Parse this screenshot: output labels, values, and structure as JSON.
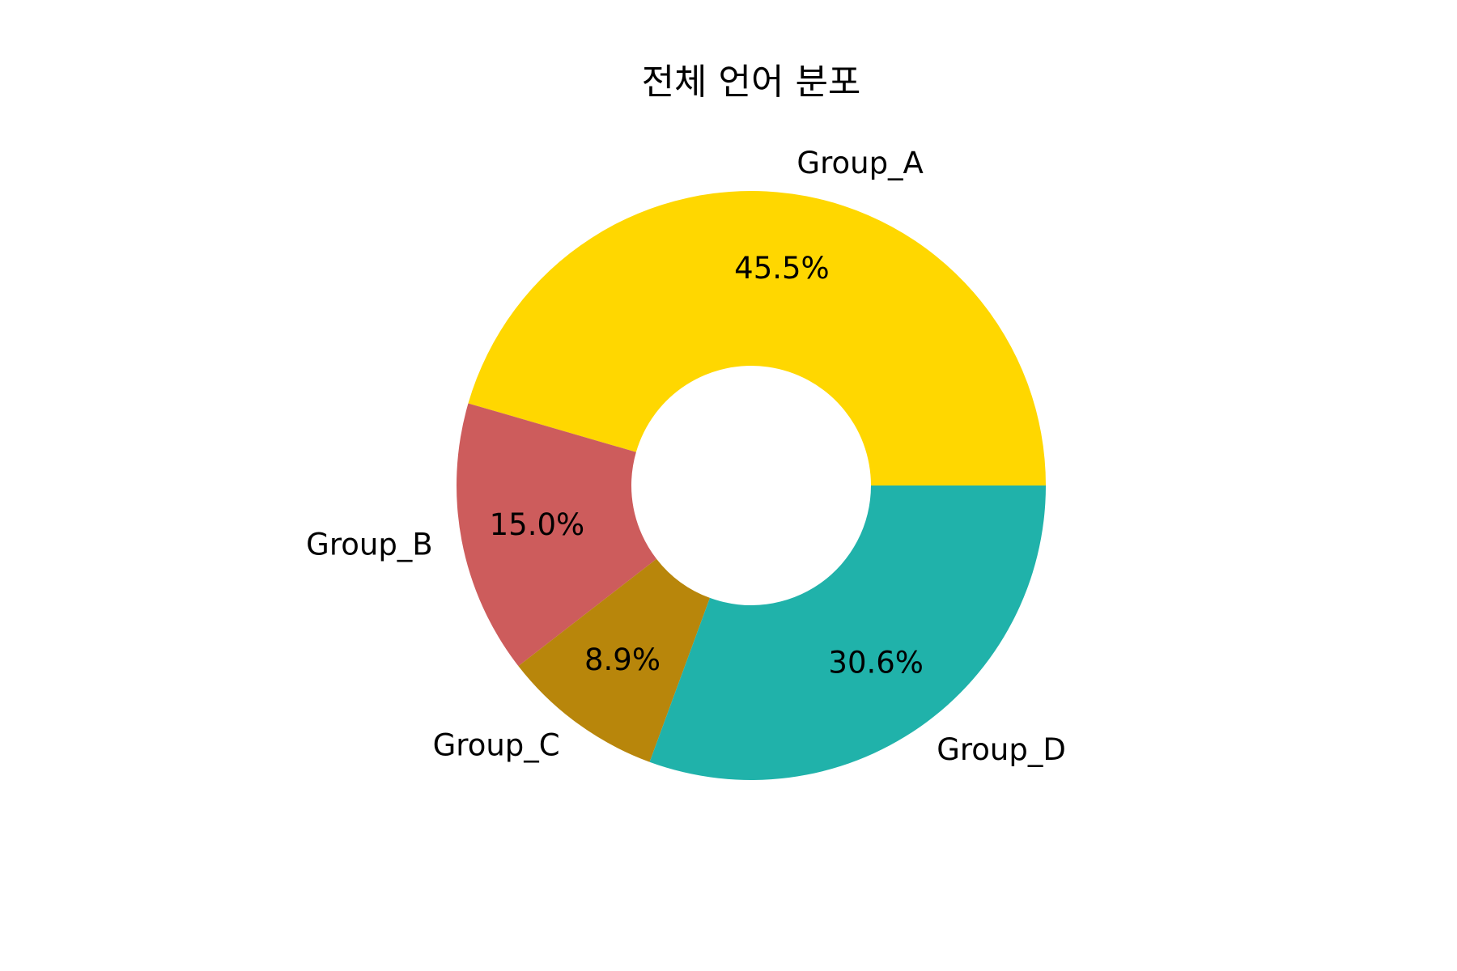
{
  "chart_data": {
    "type": "pie",
    "title": "전체 언어 분포",
    "donut": true,
    "labels": [
      "Group_A",
      "Group_B",
      "Group_C",
      "Group_D"
    ],
    "values": [
      45.5,
      15.0,
      8.9,
      30.6
    ],
    "value_labels": [
      "45.5%",
      "15.0%",
      "8.9%",
      "30.6%"
    ],
    "colors": [
      "#FFD700",
      "#CD5C5C",
      "#B8860B",
      "#20B2AA"
    ],
    "start_angle_deg": 0,
    "direction": "counterclockwise",
    "legend": "none"
  }
}
